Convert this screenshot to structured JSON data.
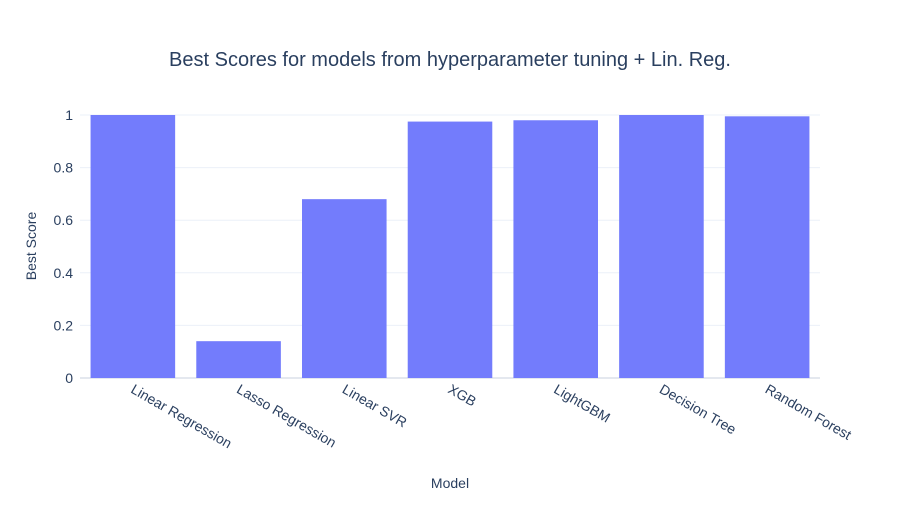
{
  "chart_data": {
    "type": "bar",
    "title": "Best Scores for models from hyperparameter tuning + Lin. Reg.",
    "xlabel": "Model",
    "ylabel": "Best Score",
    "categories": [
      "Linear Regression",
      "Lasso Regression",
      "Linear SVR",
      "XGB",
      "LightGBM",
      "Decision Tree",
      "Random Forest"
    ],
    "values": [
      1.0,
      0.14,
      0.68,
      0.975,
      0.98,
      1.0,
      0.995
    ],
    "ylim": [
      0,
      1.0
    ],
    "yticks": [
      0,
      0.2,
      0.4,
      0.6,
      0.8,
      1
    ],
    "ytick_labels": [
      "0",
      "0.2",
      "0.4",
      "0.6",
      "0.8",
      "1"
    ],
    "grid": true,
    "colors": {
      "bar": "#737cfc",
      "text": "#2a3f5f",
      "grid": "#ebf0f8",
      "zeroline": "#e4e8ef"
    }
  }
}
